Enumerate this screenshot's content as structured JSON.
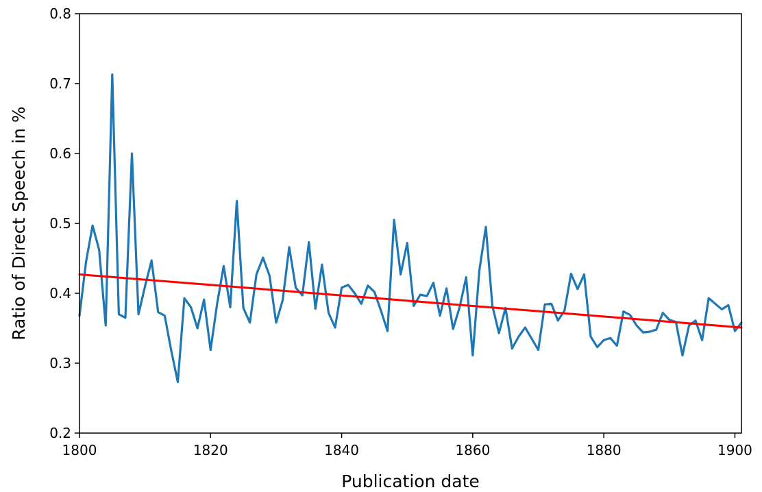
{
  "chart_data": {
    "type": "line",
    "title": "",
    "xlabel": "Publication date",
    "ylabel": "Ratio of Direct Speech in %",
    "xlim": [
      1800,
      1901
    ],
    "ylim": [
      0.2,
      0.8
    ],
    "x_ticks": [
      1800,
      1820,
      1840,
      1860,
      1880,
      1900
    ],
    "y_ticks": [
      0.2,
      0.3,
      0.4,
      0.5,
      0.6,
      0.7,
      0.8
    ],
    "y_tick_labels": [
      "0.2",
      "0.3",
      "0.4",
      "0.5",
      "0.6",
      "0.7",
      "0.8"
    ],
    "grid": false,
    "legend": "none",
    "series": [
      {
        "color": "#1f77b4",
        "x": [
          1800,
          1801,
          1802,
          1803,
          1804,
          1805,
          1806,
          1807,
          1808,
          1809,
          1810,
          1811,
          1812,
          1813,
          1814,
          1815,
          1816,
          1817,
          1818,
          1819,
          1820,
          1821,
          1822,
          1823,
          1824,
          1825,
          1826,
          1827,
          1828,
          1829,
          1830,
          1831,
          1832,
          1833,
          1834,
          1835,
          1836,
          1837,
          1838,
          1839,
          1840,
          1841,
          1842,
          1843,
          1844,
          1845,
          1846,
          1847,
          1848,
          1849,
          1850,
          1851,
          1852,
          1853,
          1854,
          1855,
          1856,
          1857,
          1858,
          1859,
          1860,
          1861,
          1862,
          1863,
          1864,
          1865,
          1866,
          1867,
          1868,
          1869,
          1870,
          1871,
          1872,
          1873,
          1874,
          1875,
          1876,
          1877,
          1878,
          1879,
          1880,
          1881,
          1882,
          1883,
          1884,
          1885,
          1886,
          1887,
          1888,
          1889,
          1890,
          1891,
          1892,
          1893,
          1894,
          1895,
          1896,
          1897,
          1898,
          1899,
          1900,
          1901
        ],
        "y": [
          0.368,
          0.445,
          0.497,
          0.462,
          0.354,
          0.713,
          0.37,
          0.365,
          0.6,
          0.37,
          0.41,
          0.447,
          0.373,
          0.368,
          0.318,
          0.273,
          0.393,
          0.38,
          0.35,
          0.391,
          0.319,
          0.385,
          0.439,
          0.38,
          0.532,
          0.379,
          0.358,
          0.427,
          0.451,
          0.425,
          0.358,
          0.39,
          0.466,
          0.408,
          0.397,
          0.473,
          0.378,
          0.441,
          0.372,
          0.351,
          0.408,
          0.412,
          0.4,
          0.385,
          0.411,
          0.402,
          0.375,
          0.346,
          0.505,
          0.427,
          0.472,
          0.382,
          0.398,
          0.396,
          0.415,
          0.368,
          0.407,
          0.349,
          0.38,
          0.423,
          0.311,
          0.432,
          0.495,
          0.382,
          0.343,
          0.379,
          0.321,
          0.338,
          0.351,
          0.335,
          0.319,
          0.384,
          0.385,
          0.361,
          0.375,
          0.428,
          0.406,
          0.427,
          0.338,
          0.323,
          0.333,
          0.336,
          0.325,
          0.374,
          0.369,
          0.354,
          0.344,
          0.345,
          0.348,
          0.372,
          0.362,
          0.359,
          0.311,
          0.354,
          0.361,
          0.333,
          0.393,
          0.385,
          0.377,
          0.383,
          0.346,
          0.358
        ]
      },
      {
        "color": "#ff0000",
        "x": [
          1800,
          1901
        ],
        "y": [
          0.427,
          0.351
        ]
      }
    ]
  }
}
